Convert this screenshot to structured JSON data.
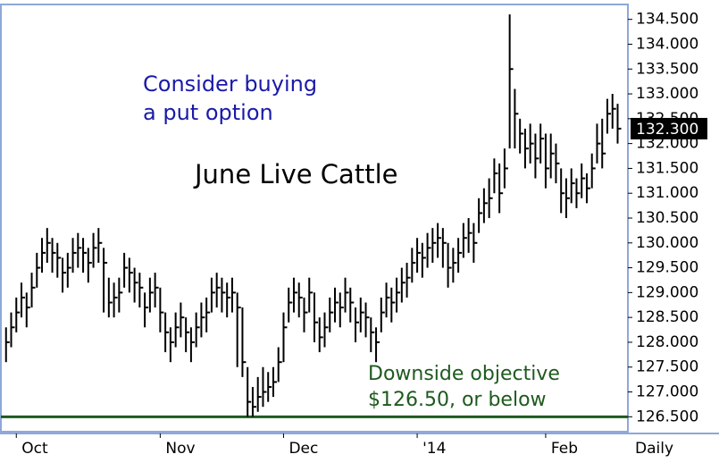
{
  "chart_data": {
    "type": "ohlc",
    "title": "June Live Cattle",
    "annotations": [
      "Consider buying",
      "a put option",
      "Downside objective",
      "$126.50, or below"
    ],
    "period_label": "Daily",
    "color": "#000000",
    "level_line": {
      "value": 126.5,
      "color": "#1e5a1e"
    },
    "last_price": {
      "value": 132.3,
      "label": "132.300"
    },
    "ylim": [
      126.2,
      134.8
    ],
    "yticks": [
      {
        "value": 126.5,
        "label": "126.500"
      },
      {
        "value": 127,
        "label": "127.000"
      },
      {
        "value": 127.5,
        "label": "127.500"
      },
      {
        "value": 128,
        "label": "128.000"
      },
      {
        "value": 128.5,
        "label": "128.500"
      },
      {
        "value": 129,
        "label": "129.000"
      },
      {
        "value": 129.5,
        "label": "129.500"
      },
      {
        "value": 130,
        "label": "130.000"
      },
      {
        "value": 130.5,
        "label": "130.500"
      },
      {
        "value": 131,
        "label": "131.000"
      },
      {
        "value": 131.5,
        "label": "131.500"
      },
      {
        "value": 132,
        "label": "132.000"
      },
      {
        "value": 132.5,
        "label": "132.500"
      },
      {
        "value": 133,
        "label": "133.000"
      },
      {
        "value": 133.5,
        "label": "133.500"
      },
      {
        "value": 134,
        "label": "134.000"
      },
      {
        "value": 134.5,
        "label": "134.500"
      }
    ],
    "xlim": [
      -1,
      121
    ],
    "xticks": [
      {
        "value": 2,
        "label": "Oct"
      },
      {
        "value": 30,
        "label": "Nov"
      },
      {
        "value": 54,
        "label": "Dec"
      },
      {
        "value": 80,
        "label": "'14"
      },
      {
        "value": 105,
        "label": "Feb"
      }
    ],
    "high": [
      128.3,
      128.6,
      128.9,
      129.2,
      129.0,
      129.4,
      129.8,
      130.1,
      130.3,
      130.1,
      130.0,
      129.7,
      129.8,
      130.1,
      130.2,
      130.1,
      129.9,
      130.2,
      130.3,
      129.9,
      129.3,
      129.2,
      129.3,
      129.8,
      129.7,
      129.5,
      129.4,
      129.0,
      129.3,
      129.4,
      129.1,
      128.6,
      128.3,
      128.6,
      128.8,
      128.5,
      128.3,
      128.6,
      128.8,
      128.9,
      129.3,
      129.4,
      129.3,
      129.2,
      129.3,
      129.0,
      128.7,
      127.5,
      127.1,
      127.3,
      127.5,
      127.4,
      127.5,
      127.9,
      128.6,
      129.1,
      129.3,
      129.2,
      128.9,
      129.3,
      129.0,
      128.5,
      128.6,
      128.9,
      129.1,
      129.0,
      129.3,
      129.1,
      128.7,
      128.9,
      128.8,
      128.5,
      128.3,
      128.9,
      129.2,
      129.1,
      129.3,
      129.5,
      129.6,
      129.9,
      130.1,
      130.0,
      130.2,
      130.3,
      130.4,
      130.3,
      130.0,
      129.9,
      130.1,
      130.4,
      130.5,
      130.4,
      130.9,
      131.1,
      131.3,
      131.7,
      131.6,
      131.9,
      134.6,
      133.1,
      132.5,
      132.3,
      132.4,
      132.2,
      132.4,
      132.2,
      132.2,
      132.0,
      131.5,
      131.3,
      131.5,
      131.3,
      131.6,
      131.4,
      131.8,
      132.4,
      132.5,
      132.9,
      133.0,
      132.8
    ],
    "low": [
      127.6,
      127.9,
      128.2,
      128.5,
      128.3,
      128.7,
      129.1,
      129.4,
      129.6,
      129.4,
      129.3,
      129.0,
      129.1,
      129.4,
      129.5,
      129.4,
      129.2,
      129.5,
      129.6,
      128.6,
      128.5,
      128.5,
      128.6,
      129.1,
      129.0,
      128.8,
      128.7,
      128.3,
      128.6,
      128.7,
      128.2,
      127.8,
      127.6,
      127.9,
      128.1,
      127.8,
      127.6,
      127.9,
      128.1,
      128.2,
      128.6,
      128.7,
      128.6,
      128.5,
      128.6,
      127.5,
      127.3,
      126.5,
      126.5,
      126.6,
      126.7,
      126.8,
      126.9,
      127.2,
      127.6,
      128.4,
      128.6,
      128.5,
      128.2,
      128.6,
      128.0,
      127.8,
      127.9,
      128.2,
      128.4,
      128.3,
      128.6,
      128.4,
      128.0,
      128.2,
      128.1,
      127.8,
      127.6,
      128.2,
      128.5,
      128.4,
      128.6,
      128.8,
      128.9,
      129.2,
      129.4,
      129.3,
      129.5,
      129.6,
      129.7,
      129.5,
      129.1,
      129.2,
      129.4,
      129.7,
      129.8,
      129.6,
      130.2,
      130.4,
      130.5,
      131.0,
      130.6,
      131.1,
      131.9,
      131.9,
      131.8,
      131.5,
      131.6,
      131.3,
      131.6,
      131.1,
      131.3,
      131.2,
      130.6,
      130.5,
      130.8,
      130.7,
      130.9,
      130.8,
      131.1,
      131.6,
      131.5,
      132.2,
      132.3,
      132.0
    ],
    "close": [
      128.0,
      128.3,
      128.6,
      128.9,
      128.7,
      129.1,
      129.5,
      129.8,
      130.0,
      129.8,
      129.7,
      129.4,
      129.5,
      129.8,
      129.9,
      129.8,
      129.6,
      129.9,
      130.0,
      129.6,
      128.8,
      128.9,
      129.0,
      129.5,
      129.4,
      129.2,
      129.1,
      128.7,
      129.0,
      129.1,
      128.6,
      128.2,
      128.0,
      128.3,
      128.5,
      128.2,
      128.0,
      128.3,
      128.5,
      128.6,
      129.0,
      129.1,
      129.0,
      128.9,
      129.0,
      128.7,
      127.6,
      126.8,
      126.7,
      126.9,
      127.0,
      127.1,
      127.2,
      127.6,
      128.3,
      128.8,
      129.0,
      128.9,
      128.6,
      129.0,
      128.4,
      128.1,
      128.3,
      128.6,
      128.8,
      128.7,
      129.0,
      128.8,
      128.4,
      128.6,
      128.5,
      128.2,
      128.0,
      128.6,
      128.9,
      128.8,
      129.0,
      129.2,
      129.3,
      129.6,
      129.8,
      129.7,
      129.9,
      130.0,
      130.1,
      130.0,
      129.5,
      129.6,
      129.8,
      130.1,
      130.2,
      130.0,
      130.6,
      130.8,
      130.9,
      131.4,
      131.0,
      131.5,
      133.5,
      132.6,
      132.2,
      131.9,
      132.0,
      131.7,
      132.1,
      131.5,
      131.8,
      131.6,
      131.0,
      130.9,
      131.2,
      131.0,
      131.3,
      131.1,
      131.5,
      132.0,
      131.8,
      132.6,
      132.7,
      132.3
    ]
  }
}
